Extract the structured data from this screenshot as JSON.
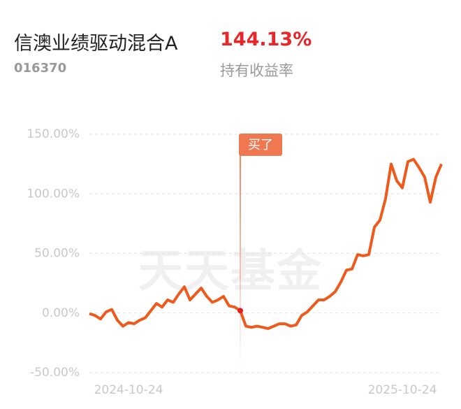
{
  "header": {
    "title": "信澳业绩驱动混合A",
    "code": "016370",
    "return_value": "144.13%",
    "return_label": "持有收益率"
  },
  "chart_data": {
    "type": "line",
    "categories": [
      "2024-10-24",
      null,
      null,
      null,
      null,
      null,
      null,
      null,
      null,
      null,
      null,
      null,
      null,
      null,
      null,
      null,
      null,
      null,
      null,
      null,
      null,
      null,
      null,
      null,
      null,
      null,
      null,
      null,
      null,
      null,
      null,
      null,
      null,
      null,
      null,
      null,
      null,
      null,
      null,
      null,
      null,
      null,
      null,
      null,
      null,
      null,
      null,
      null,
      null,
      null,
      null,
      null,
      null,
      null,
      null,
      null,
      null,
      null,
      null,
      null,
      null,
      null,
      null,
      "2025-10-24"
    ],
    "series": [
      {
        "color": "#ee5a1b",
        "values": [
          -0.5,
          -2,
          -5,
          1,
          3,
          -6,
          -11,
          -8,
          -9,
          -6,
          -4,
          2,
          8,
          5,
          11,
          9,
          16,
          22,
          11,
          16,
          21,
          14,
          9,
          11,
          14,
          6,
          5,
          2,
          -11,
          -12,
          -11,
          -12,
          -13,
          -11,
          -9,
          -9,
          -11,
          -10,
          -2,
          1,
          6,
          11,
          11,
          14,
          18,
          26,
          36,
          37,
          49,
          48,
          49,
          72,
          78,
          96,
          125,
          111,
          105,
          127,
          129,
          122,
          114,
          93,
          114,
          125
        ]
      }
    ],
    "ylim": [
      -50,
      150
    ],
    "yticks": [
      {
        "value": -50,
        "label": "-50.00%"
      },
      {
        "value": 0,
        "label": "0.00%"
      },
      {
        "value": 50,
        "label": "50.00%"
      },
      {
        "value": 100,
        "label": "100.00%"
      },
      {
        "value": 150,
        "label": "150.00%"
      }
    ],
    "grid": true,
    "annotation": "买了",
    "watermark": "天天基金"
  }
}
